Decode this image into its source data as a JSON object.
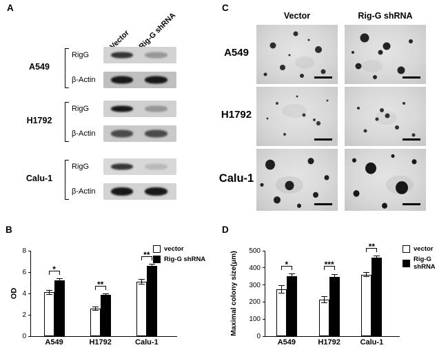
{
  "figure": {
    "panel_a": {
      "label": "A",
      "lane_headers": [
        "Vector",
        "Rig-G shRNA"
      ],
      "groups": [
        {
          "cell_line": "A549",
          "blot_rows": [
            "RigG",
            "β-Actin"
          ]
        },
        {
          "cell_line": "H1792",
          "blot_rows": [
            "RigG",
            "β-Actin"
          ]
        },
        {
          "cell_line": "Calu-1",
          "blot_rows": [
            "RigG",
            "β-Actin"
          ]
        }
      ]
    },
    "panel_b": {
      "label": "B"
    },
    "panel_c": {
      "label": "C",
      "column_headers": [
        "Vector",
        "Rig-G shRNA"
      ],
      "row_labels": [
        "A549",
        "H1792",
        "Calu-1"
      ]
    },
    "panel_d": {
      "label": "D"
    }
  },
  "chart_data": [
    {
      "id": "panel-b",
      "type": "bar",
      "title": "",
      "categories": [
        "A549",
        "H1792",
        "Calu-1"
      ],
      "series": [
        {
          "name": "vector",
          "color": "#ffffff",
          "values": [
            4.1,
            2.6,
            5.1
          ],
          "errors": [
            0.25,
            0.2,
            0.25
          ]
        },
        {
          "name": "Rig-G shRNA",
          "color": "#000000",
          "values": [
            5.2,
            3.85,
            6.6
          ],
          "errors": [
            0.2,
            0.15,
            0.2
          ]
        }
      ],
      "xlabel": "",
      "ylabel": "OD",
      "ylim": [
        0,
        8
      ],
      "yticks": [
        0,
        2,
        4,
        6,
        8
      ],
      "significance": [
        "*",
        "**",
        "**"
      ],
      "legend_position": "top-right",
      "grid": false
    },
    {
      "id": "panel-d",
      "type": "bar",
      "title": "",
      "categories": [
        "A549",
        "H1792",
        "Calu-1"
      ],
      "series": [
        {
          "name": "vector",
          "color": "#ffffff",
          "values": [
            275,
            215,
            360
          ],
          "errors": [
            25,
            20,
            15
          ]
        },
        {
          "name": "Rig-G shRNA",
          "color": "#000000",
          "values": [
            350,
            345,
            460
          ],
          "errors": [
            18,
            20,
            12
          ]
        }
      ],
      "xlabel": "",
      "ylabel": "Maximal colony size(μm)",
      "ylim": [
        0,
        500
      ],
      "yticks": [
        0,
        100,
        200,
        300,
        400,
        500
      ],
      "significance": [
        "*",
        "***",
        "**"
      ],
      "legend_position": "top-right",
      "grid": false
    }
  ]
}
